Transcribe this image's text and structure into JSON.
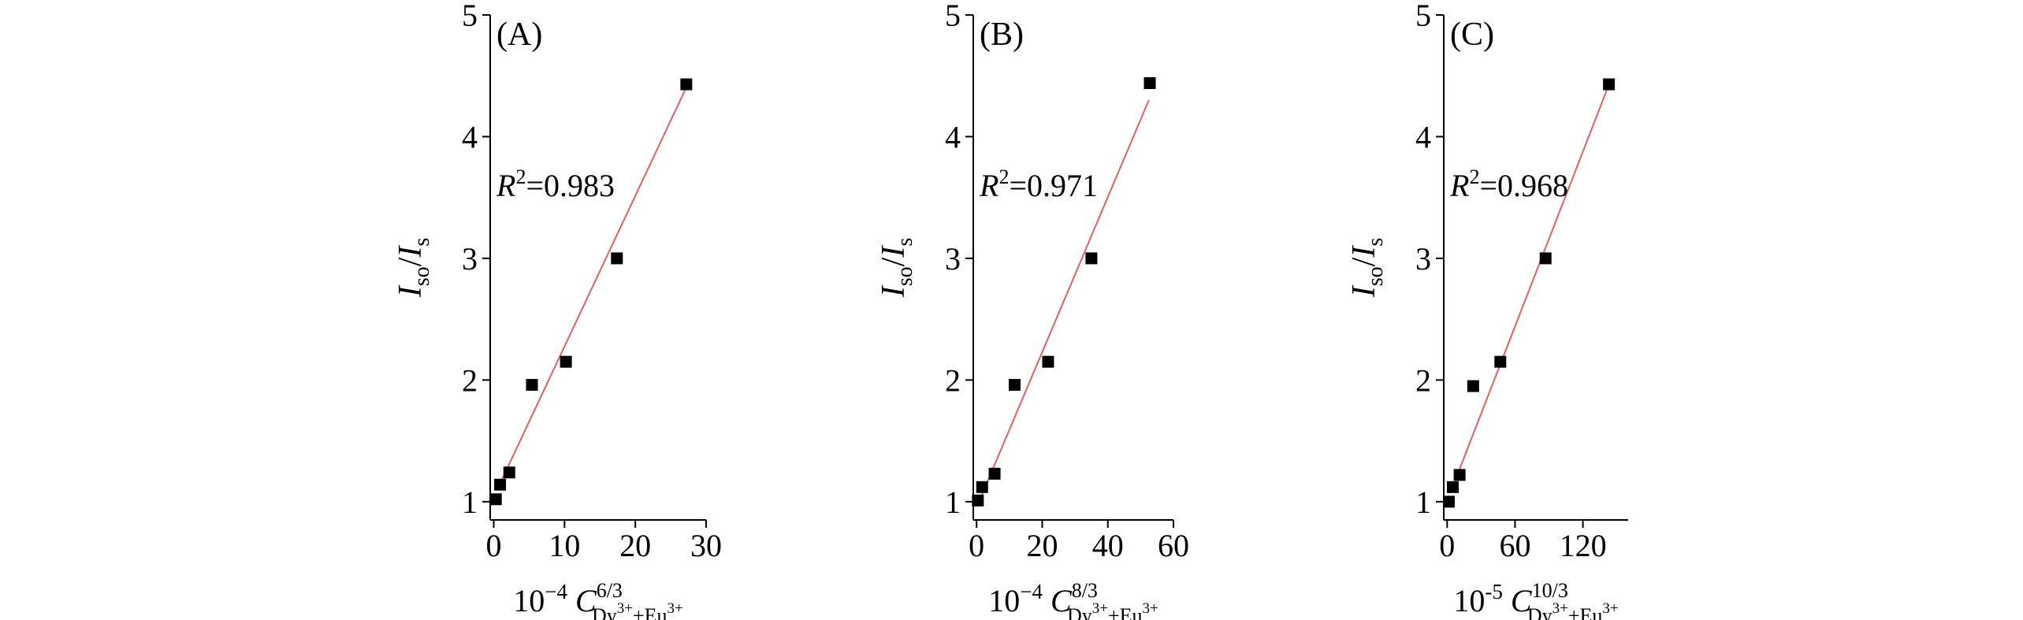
{
  "chart_data": [
    {
      "type": "scatter",
      "panel_label": "(A)",
      "annotation_sup": "2",
      "annotation_value": "=0.983",
      "ylabel_main": "I",
      "ylabel_main_sub": "so",
      "ylabel_div": "/",
      "ylabel_denom": "I",
      "ylabel_denom_sub": "s",
      "xlabel_prefix": "10",
      "xlabel_exp": "−4",
      "xlabel_var": "C",
      "xlabel_sup": "6/3",
      "xlabel_sub": "Dy",
      "xlabel_sub_sup1": "3+",
      "xlabel_sub_mid": "+Eu",
      "xlabel_sub_sup2": "3+",
      "xlim": [
        -0.5,
        30
      ],
      "ylim": [
        0.85,
        5
      ],
      "xticks": [
        0,
        10,
        20,
        30
      ],
      "yticks": [
        1,
        2,
        3,
        4,
        5
      ],
      "points": [
        [
          0.3,
          1.02
        ],
        [
          0.9,
          1.14
        ],
        [
          2.2,
          1.24
        ],
        [
          5.4,
          1.96
        ],
        [
          10.2,
          2.15
        ],
        [
          17.4,
          3.0
        ],
        [
          27.2,
          4.43
        ]
      ],
      "fit_line": [
        [
          0.9,
          1.15
        ],
        [
          27.0,
          4.38
        ]
      ],
      "colors": {
        "points": "#000000",
        "fit": "#e06060"
      }
    },
    {
      "type": "scatter",
      "panel_label": "(B)",
      "annotation_sup": "2",
      "annotation_value": "=0.971",
      "ylabel_main": "I",
      "ylabel_main_sub": "so",
      "ylabel_div": "/",
      "ylabel_denom": "I",
      "ylabel_denom_sub": "s",
      "xlabel_prefix": "10",
      "xlabel_exp": "−4",
      "xlabel_var": "C",
      "xlabel_sup": "8/3",
      "xlabel_sub": "Dy",
      "xlabel_sub_sup1": "3+",
      "xlabel_sub_mid": "+Eu",
      "xlabel_sub_sup2": "3+",
      "xlim": [
        -1,
        60
      ],
      "ylim": [
        0.85,
        5
      ],
      "xticks": [
        0,
        20,
        40,
        60
      ],
      "yticks": [
        1,
        2,
        3,
        4,
        5
      ],
      "points": [
        [
          0.4,
          1.01
        ],
        [
          1.7,
          1.12
        ],
        [
          5.5,
          1.23
        ],
        [
          11.6,
          1.96
        ],
        [
          21.8,
          2.15
        ],
        [
          35.0,
          3.0
        ],
        [
          52.8,
          4.44
        ]
      ],
      "fit_line": [
        [
          1.2,
          1.03
        ],
        [
          52.5,
          4.3
        ]
      ],
      "colors": {
        "points": "#000000",
        "fit": "#e06060"
      }
    },
    {
      "type": "scatter",
      "panel_label": "(C)",
      "annotation_sup": "2",
      "annotation_value": "=0.968",
      "ylabel_main": "I",
      "ylabel_main_sub": "so",
      "ylabel_div": "/",
      "ylabel_denom": "I",
      "ylabel_denom_sub": "s",
      "xlabel_prefix": "10",
      "xlabel_exp": "-5",
      "xlabel_var": "C",
      "xlabel_sup": "10/3",
      "xlabel_sub": "Dy",
      "xlabel_sub_sup1": "3+",
      "xlabel_sub_mid": "+Eu",
      "xlabel_sub_sup2": "3+",
      "xlim": [
        -3,
        160
      ],
      "ylim": [
        0.85,
        5
      ],
      "xticks": [
        0,
        60,
        120
      ],
      "yticks": [
        1,
        2,
        3,
        4,
        5
      ],
      "points": [
        [
          1.5,
          1.0
        ],
        [
          5.0,
          1.12
        ],
        [
          11.0,
          1.22
        ],
        [
          23.0,
          1.95
        ],
        [
          47.0,
          2.15
        ],
        [
          87.0,
          3.0
        ],
        [
          143.0,
          4.43
        ]
      ],
      "fit_line": [
        [
          9.0,
          1.22
        ],
        [
          141.0,
          4.38
        ]
      ],
      "colors": {
        "points": "#000000",
        "fit": "#e06060"
      }
    }
  ]
}
